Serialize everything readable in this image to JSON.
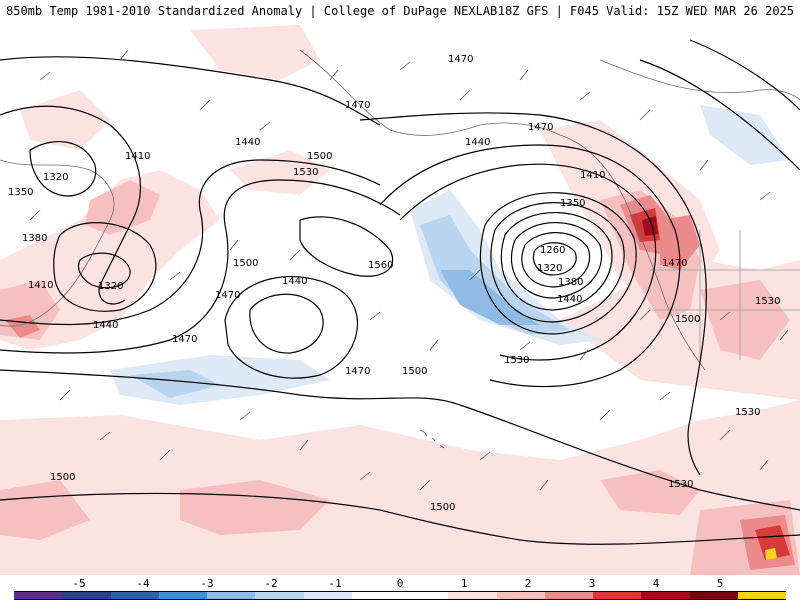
{
  "header": {
    "title_left": "850mb Temp 1981-2010 Standardized Anomaly | College of DuPage NEXLAB",
    "title_right": "18Z GFS | F045 Valid: 15Z WED MAR 26 2025"
  },
  "colors": {
    "contour": "#000000",
    "coast": "#6b6b6b",
    "pos1": "#fde2e2",
    "pos2": "#f7c0c0",
    "pos3": "#eb8a8a",
    "pos4": "#d63a3a",
    "pos5": "#a10c1c",
    "pos6": "#ffd21c",
    "neg1": "#dde9f6",
    "neg2": "#b9d4ef",
    "neg3": "#8fbbe6"
  },
  "contour_labels": [
    {
      "text": "1470"
    },
    {
      "text": "1470"
    },
    {
      "text": "1470"
    },
    {
      "text": "1410"
    },
    {
      "text": "1440"
    },
    {
      "text": "1500"
    },
    {
      "text": "1530"
    },
    {
      "text": "1320"
    },
    {
      "text": "1350"
    },
    {
      "text": "1380"
    },
    {
      "text": "1410"
    },
    {
      "text": "1320"
    },
    {
      "text": "1440"
    },
    {
      "text": "1470"
    },
    {
      "text": "1500"
    },
    {
      "text": "1440"
    },
    {
      "text": "1560"
    },
    {
      "text": "1470"
    },
    {
      "text": "1470"
    },
    {
      "text": "1500"
    },
    {
      "text": "1440"
    },
    {
      "text": "1410"
    },
    {
      "text": "1350"
    },
    {
      "text": "1260"
    },
    {
      "text": "1320"
    },
    {
      "text": "1380"
    },
    {
      "text": "1440"
    },
    {
      "text": "1470"
    },
    {
      "text": "1500"
    },
    {
      "text": "1530"
    },
    {
      "text": "1530"
    },
    {
      "text": "1530"
    },
    {
      "text": "1530"
    },
    {
      "text": "1500"
    },
    {
      "text": "1500"
    }
  ],
  "colorbar": {
    "labels": [
      "-5",
      "-4",
      "-3",
      "-2",
      "-1",
      "0",
      "1",
      "2",
      "3",
      "4",
      "5"
    ],
    "colors": [
      "#5b2d8e",
      "#2e3f8f",
      "#2f5fae",
      "#3a8fd6",
      "#8fbbe6",
      "#b9d4ef",
      "#dde9f6",
      "#ffffff",
      "#ffffff",
      "#fde2e2",
      "#f7c0c0",
      "#eb8a8a",
      "#d63a3a",
      "#a10c1c",
      "#7a0010",
      "#ffd21c"
    ]
  }
}
